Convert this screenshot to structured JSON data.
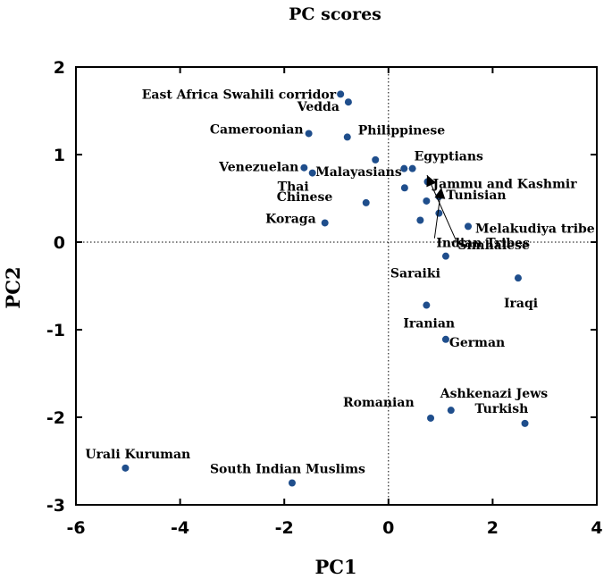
{
  "chart_data": {
    "type": "scatter",
    "title": "PC scores",
    "xlabel": "PC1",
    "ylabel": "PC2",
    "xlim": [
      -6,
      4
    ],
    "ylim": [
      -3,
      2
    ],
    "xticks": [
      -6,
      -4,
      -2,
      0,
      2,
      4
    ],
    "yticks": [
      -3,
      -2,
      -1,
      0,
      1,
      2
    ],
    "xtick_labels": [
      "-6",
      "-4",
      "-2",
      "0",
      "2",
      "4"
    ],
    "ytick_labels": [
      "-3",
      "-2",
      "-1",
      "0",
      "1",
      "2"
    ],
    "reference_lines": {
      "x": 0,
      "y": 0,
      "style": "dotted"
    },
    "point_color": "#1f4e8c",
    "points": [
      {
        "label": "East Africa Swahili corridor",
        "x": -0.92,
        "y": 1.69
      },
      {
        "label": "Vedda",
        "x": -0.77,
        "y": 1.6
      },
      {
        "label": "Cameroonian",
        "x": -1.53,
        "y": 1.24
      },
      {
        "label": "Philippinese",
        "x": -0.79,
        "y": 1.2
      },
      {
        "label": "Venezuelan",
        "x": -1.62,
        "y": 0.85
      },
      {
        "label": "Thai",
        "x": -1.46,
        "y": 0.79
      },
      {
        "label": "Malayasians",
        "x": -0.25,
        "y": 0.94
      },
      {
        "label": "Egyptians",
        "x": 0.46,
        "y": 0.84
      },
      {
        "label": "Jammu and Kashmir",
        "x": 0.75,
        "y": 0.69
      },
      {
        "label": "Chinese",
        "x": -0.43,
        "y": 0.45
      },
      {
        "label": "Koraga",
        "x": -1.22,
        "y": 0.22
      },
      {
        "label": "Tunisian",
        "x": 0.97,
        "y": 0.52
      },
      {
        "label": "Simhalese",
        "x": 0.73,
        "y": 0.47
      },
      {
        "label": "Melakudiya tribe",
        "x": 1.53,
        "y": 0.18
      },
      {
        "label": "Indian Tribes",
        "x": 0.97,
        "y": 0.33
      },
      {
        "label": "",
        "x": 0.3,
        "y": 0.84
      },
      {
        "label": "",
        "x": 0.31,
        "y": 0.62
      },
      {
        "label": "",
        "x": 0.61,
        "y": 0.25
      },
      {
        "label": "Saraiki",
        "x": 1.1,
        "y": -0.16
      },
      {
        "label": "Iraqi",
        "x": 2.49,
        "y": -0.41
      },
      {
        "label": "Iranian",
        "x": 0.73,
        "y": -0.72
      },
      {
        "label": "German",
        "x": 1.1,
        "y": -1.11
      },
      {
        "label": "Ashkenazi Jews",
        "x": 1.2,
        "y": -1.92
      },
      {
        "label": "Romanian",
        "x": 0.81,
        "y": -2.01
      },
      {
        "label": "Turkish",
        "x": 2.62,
        "y": -2.07
      },
      {
        "label": "Urali Kuruman",
        "x": -5.05,
        "y": -2.58
      },
      {
        "label": "South Indian Muslims",
        "x": -1.85,
        "y": -2.75
      }
    ]
  }
}
